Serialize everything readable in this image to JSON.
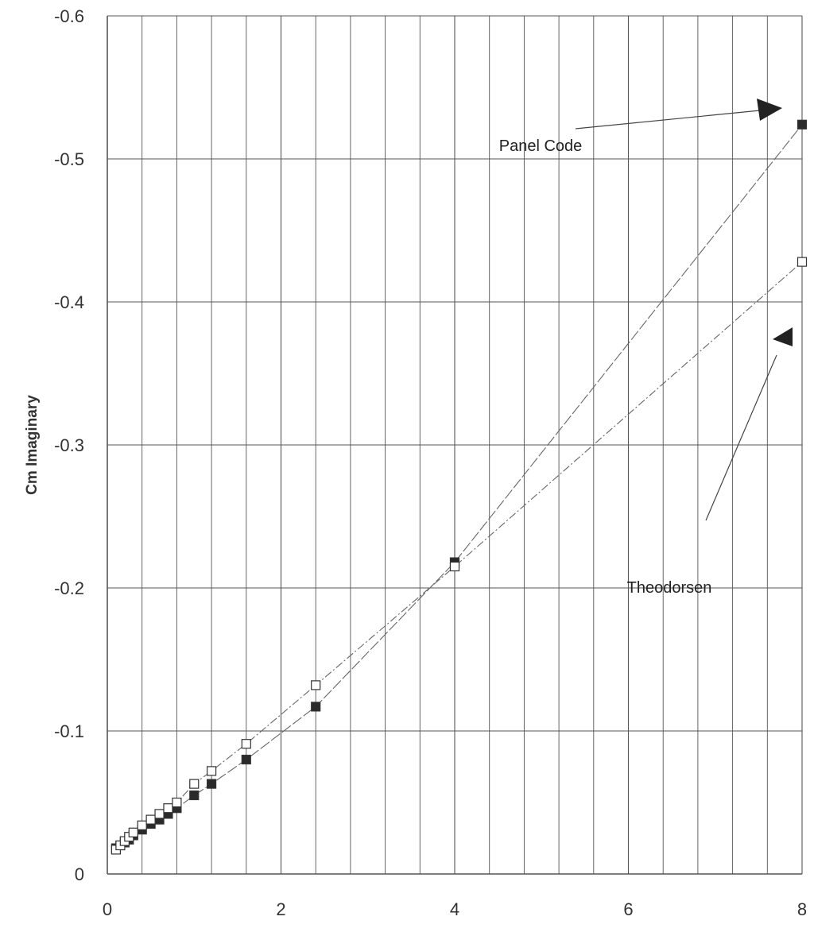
{
  "chart_data": {
    "type": "scatter",
    "title": "",
    "xlabel": "",
    "ylabel": "Cm Imaginary",
    "xlim": [
      0,
      8
    ],
    "ylim": [
      0,
      -0.6
    ],
    "y_inverted": true,
    "grid": true,
    "x_ticks": [
      "0",
      "2",
      "4",
      "6",
      "8"
    ],
    "y_ticks": [
      "0",
      "-0.1",
      "-0.2",
      "-0.3",
      "-0.4",
      "-0.5",
      "-0.6"
    ],
    "series": [
      {
        "name": "Panel Code",
        "marker": "filled-square",
        "color": "#333333",
        "x": [
          0.1,
          0.15,
          0.2,
          0.25,
          0.3,
          0.4,
          0.5,
          0.6,
          0.7,
          0.8,
          1.0,
          1.2,
          1.6,
          2.4,
          4.0,
          8.0
        ],
        "y": [
          -0.018,
          -0.02,
          -0.022,
          -0.024,
          -0.027,
          -0.031,
          -0.035,
          -0.038,
          -0.042,
          -0.046,
          -0.055,
          -0.063,
          -0.08,
          -0.117,
          -0.218,
          -0.524
        ]
      },
      {
        "name": "Theodorsen",
        "marker": "open-square",
        "color": "#333333",
        "x": [
          0.1,
          0.15,
          0.2,
          0.25,
          0.3,
          0.4,
          0.5,
          0.6,
          0.7,
          0.8,
          1.0,
          1.2,
          1.6,
          2.4,
          4.0,
          8.0
        ],
        "y": [
          -0.017,
          -0.02,
          -0.023,
          -0.026,
          -0.029,
          -0.034,
          -0.038,
          -0.042,
          -0.046,
          -0.05,
          -0.063,
          -0.072,
          -0.091,
          -0.132,
          -0.215,
          -0.428
        ]
      }
    ],
    "annotations": [
      {
        "text": "Panel Code"
      },
      {
        "text": "Theodorsen"
      }
    ]
  }
}
